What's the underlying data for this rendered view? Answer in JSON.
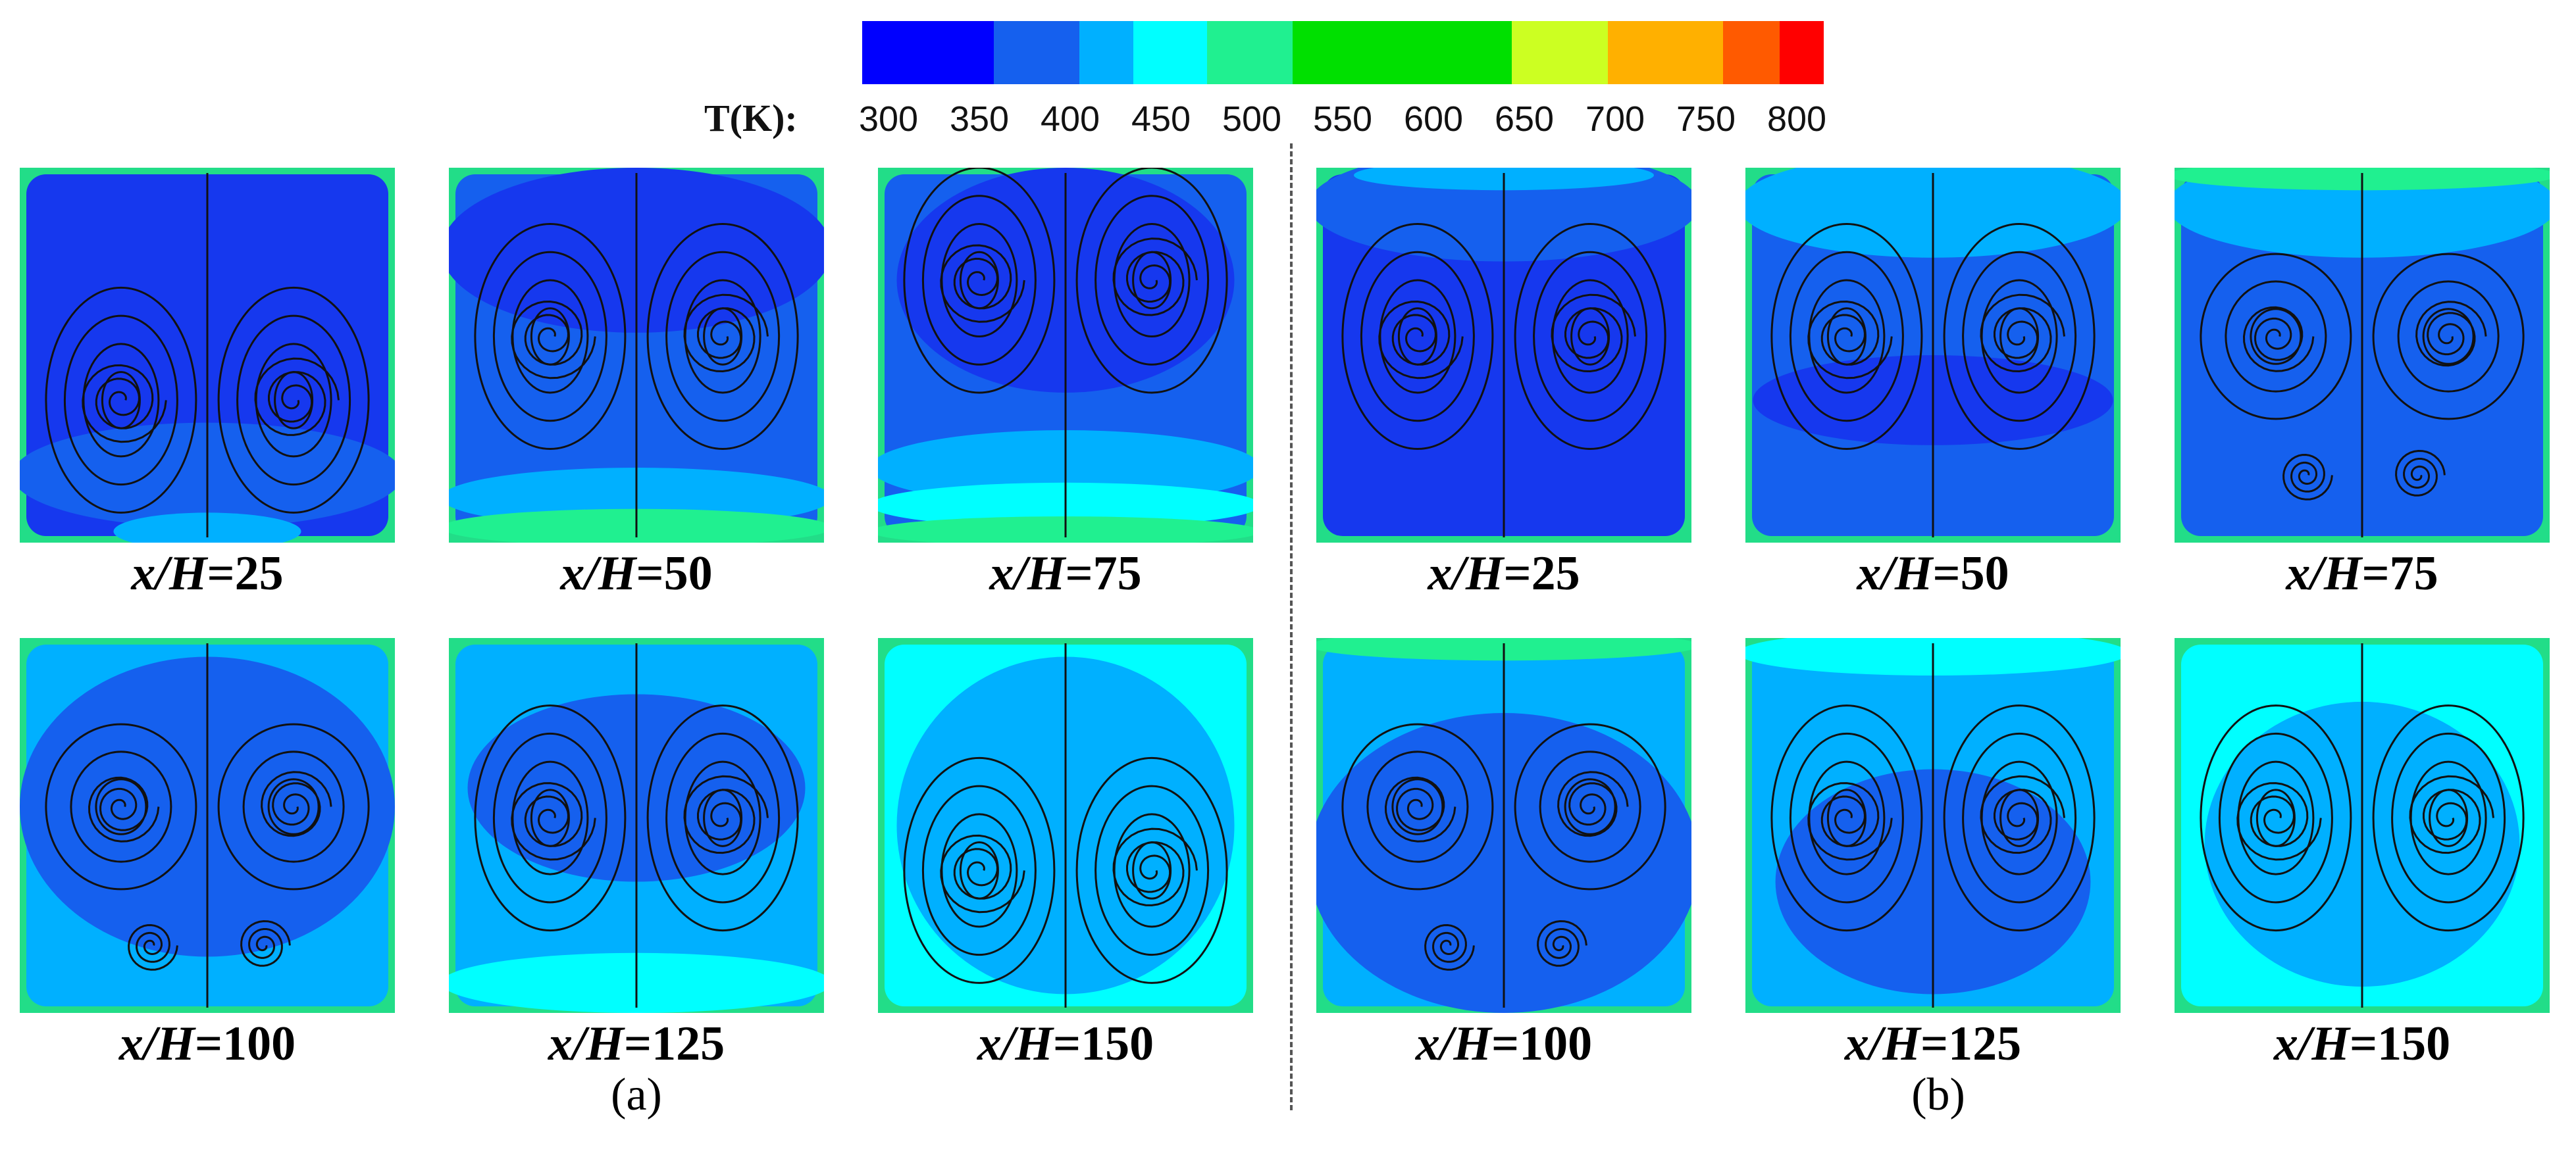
{
  "legend": {
    "unit_label": "T(K):",
    "ticks": [
      "300",
      "350",
      "400",
      "450",
      "500",
      "550",
      "600",
      "650",
      "700",
      "750",
      "800"
    ],
    "colors": [
      "#0000ff",
      "#1560ee",
      "#00b0ff",
      "#00ffff",
      "#20f090",
      "#00e000",
      "#00e000",
      "#ccff22",
      "#ffb000",
      "#ff5a00",
      "#ff0000"
    ]
  },
  "groups": [
    {
      "label": "(a)",
      "panels": [
        {
          "caption_var": "x/H",
          "caption_eq": "=25",
          "bg": "#1638ee",
          "blobs": [
            {
              "c": "#1560ee",
              "cy": 0.82,
              "rx": 0.52,
              "ry": 0.14
            },
            {
              "c": "#00b0ff",
              "cy": 0.97,
              "rx": 0.25,
              "ry": 0.05
            }
          ],
          "edge": "#22dd88",
          "vort": "pair-low"
        },
        {
          "caption_var": "x/H",
          "caption_eq": "=50",
          "bg": "#1560ee",
          "blobs": [
            {
              "c": "#1638ee",
              "cy": 0.22,
              "rx": 0.52,
              "ry": 0.22
            },
            {
              "c": "#00b0ff",
              "cy": 0.88,
              "rx": 0.52,
              "ry": 0.08
            },
            {
              "c": "#20f090",
              "cy": 0.96,
              "rx": 0.52,
              "ry": 0.05
            }
          ],
          "edge": "#22dd88",
          "vort": "pair-side"
        },
        {
          "caption_var": "x/H",
          "caption_eq": "=75",
          "bg": "#1560ee",
          "blobs": [
            {
              "c": "#1638ee",
              "cy": 0.3,
              "rx": 0.45,
              "ry": 0.3
            },
            {
              "c": "#00b0ff",
              "cy": 0.8,
              "rx": 0.52,
              "ry": 0.1
            },
            {
              "c": "#00ffff",
              "cy": 0.9,
              "rx": 0.52,
              "ry": 0.06
            },
            {
              "c": "#20f090",
              "cy": 0.97,
              "rx": 0.52,
              "ry": 0.04
            }
          ],
          "edge": "#22dd88",
          "vort": "pair-top"
        }
      ]
    },
    {
      "label": "(a)",
      "panels": [
        {
          "caption_var": "x/H",
          "caption_eq": "=100",
          "bg": "#00b0ff",
          "blobs": [
            {
              "c": "#1560ee",
              "cy": 0.45,
              "rx": 0.5,
              "ry": 0.4
            }
          ],
          "edge": "#22dd88",
          "vort": "quad"
        },
        {
          "caption_var": "x/H",
          "caption_eq": "=125",
          "bg": "#00b0ff",
          "blobs": [
            {
              "c": "#1560ee",
              "cy": 0.4,
              "rx": 0.45,
              "ry": 0.25
            },
            {
              "c": "#00ffff",
              "cy": 0.92,
              "rx": 0.52,
              "ry": 0.08
            }
          ],
          "edge": "#22dd88",
          "vort": "pair-mid"
        },
        {
          "caption_var": "x/H",
          "caption_eq": "=150",
          "bg": "#00ffff",
          "blobs": [
            {
              "c": "#00b0ff",
              "cy": 0.5,
              "rx": 0.45,
              "ry": 0.45
            }
          ],
          "edge": "#22dd88",
          "vort": "pair-low"
        }
      ]
    },
    {
      "label": "(b)",
      "panels": [
        {
          "caption_var": "x/H",
          "caption_eq": "=25",
          "bg": "#1638ee",
          "blobs": [
            {
              "c": "#1560ee",
              "cy": 0.1,
              "rx": 0.52,
              "ry": 0.15
            },
            {
              "c": "#00b0ff",
              "cy": 0.02,
              "rx": 0.4,
              "ry": 0.04
            }
          ],
          "edge": "#22dd88",
          "vort": "pair-side"
        },
        {
          "caption_var": "x/H",
          "caption_eq": "=50",
          "bg": "#1560ee",
          "blobs": [
            {
              "c": "#00b0ff",
              "cy": 0.1,
              "rx": 0.52,
              "ry": 0.14
            },
            {
              "c": "#1638ee",
              "cy": 0.62,
              "rx": 0.48,
              "ry": 0.12
            }
          ],
          "edge": "#22dd88",
          "vort": "pair-side"
        },
        {
          "caption_var": "x/H",
          "caption_eq": "=75",
          "bg": "#1560ee",
          "blobs": [
            {
              "c": "#00b0ff",
              "cy": 0.1,
              "rx": 0.52,
              "ry": 0.14
            },
            {
              "c": "#20f090",
              "cy": 0.02,
              "rx": 0.52,
              "ry": 0.04
            }
          ],
          "edge": "#22dd88",
          "vort": "quad"
        }
      ]
    },
    {
      "label": "(b)",
      "panels": [
        {
          "caption_var": "x/H",
          "caption_eq": "=100",
          "bg": "#00b0ff",
          "blobs": [
            {
              "c": "#1560ee",
              "cy": 0.6,
              "rx": 0.52,
              "ry": 0.4
            },
            {
              "c": "#20f090",
              "cy": 0.02,
              "rx": 0.52,
              "ry": 0.04
            }
          ],
          "edge": "#22dd88",
          "vort": "quad"
        },
        {
          "caption_var": "x/H",
          "caption_eq": "=125",
          "bg": "#00b0ff",
          "blobs": [
            {
              "c": "#1560ee",
              "cy": 0.65,
              "rx": 0.42,
              "ry": 0.3
            },
            {
              "c": "#00ffff",
              "cy": 0.04,
              "rx": 0.52,
              "ry": 0.06
            }
          ],
          "edge": "#22dd88",
          "vort": "pair-mid"
        },
        {
          "caption_var": "x/H",
          "caption_eq": "=150",
          "bg": "#00ffff",
          "blobs": [
            {
              "c": "#00b0ff",
              "cy": 0.55,
              "rx": 0.42,
              "ry": 0.38
            }
          ],
          "edge": "#22dd88",
          "vort": "pair-mid"
        }
      ]
    }
  ]
}
